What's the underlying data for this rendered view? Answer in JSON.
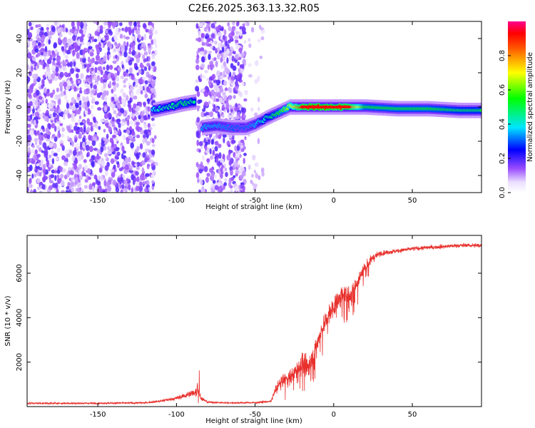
{
  "title": "C2E6.2025.363.13.32.R05",
  "chart_data": [
    {
      "type": "heatmap",
      "name": "spectrogram",
      "xlabel": "Height of straight line (km)",
      "ylabel": "Frequency (Hz)",
      "xlim": [
        -195,
        94
      ],
      "ylim": [
        -50,
        50
      ],
      "xticks": [
        -150,
        -100,
        -50,
        0,
        50
      ],
      "yticks": [
        -40,
        -20,
        0,
        20,
        40
      ],
      "colorbar": {
        "label": "Normalized spectral amplitude",
        "range": [
          0,
          1
        ],
        "ticks": [
          0.0,
          0.2,
          0.4,
          0.6,
          0.8
        ],
        "tick_labels": [
          "0.0",
          "0.2",
          "0.4",
          "0.6",
          "0.8"
        ]
      },
      "noise_regions": [
        [
          -195,
          -113
        ],
        [
          -87,
          -56
        ],
        [
          -56,
          -45
        ]
      ],
      "gap_region": [
        -113,
        -87
      ],
      "ridge": {
        "height_km": [
          -115,
          -105,
          -95,
          -88,
          -84,
          -75,
          -65,
          -56,
          -50,
          -42,
          -35,
          -28,
          -20,
          -10,
          0,
          10,
          20,
          40,
          60,
          80,
          94
        ],
        "frequency_hz": [
          -2,
          0,
          2,
          3,
          -12,
          -11,
          -12,
          -12,
          -10,
          -6,
          -3,
          0,
          0,
          0,
          0,
          0,
          0,
          -1,
          -1,
          -2,
          -2
        ],
        "amplitude": [
          0.4,
          0.45,
          0.5,
          0.45,
          0.35,
          0.35,
          0.3,
          0.3,
          0.35,
          0.45,
          0.55,
          0.65,
          0.9,
          0.95,
          0.9,
          0.9,
          0.55,
          0.55,
          0.55,
          0.5,
          0.5
        ]
      }
    },
    {
      "type": "line",
      "name": "snr",
      "xlabel": "Height of straight line (km)",
      "ylabel": "SNR (10 * v/v)",
      "xlim": [
        -195,
        94
      ],
      "ylim": [
        0,
        7700
      ],
      "xticks": [
        -150,
        -100,
        -50,
        0,
        50
      ],
      "yticks": [
        2000,
        4000,
        6000
      ],
      "color": "#e8302c",
      "series": {
        "height_km": [
          -195,
          -150,
          -120,
          -110,
          -100,
          -92,
          -88,
          -86,
          -84,
          -80,
          -70,
          -60,
          -50,
          -40,
          -36,
          -32,
          -28,
          -24,
          -20,
          -16,
          -12,
          -8,
          -4,
          0,
          5,
          10,
          15,
          20,
          25,
          30,
          40,
          50,
          60,
          70,
          80,
          94
        ],
        "snr": [
          150,
          150,
          170,
          250,
          380,
          550,
          650,
          700,
          350,
          200,
          170,
          170,
          180,
          230,
          900,
          1200,
          1300,
          1600,
          2000,
          1800,
          2500,
          3400,
          4000,
          4500,
          5000,
          5000,
          5600,
          6300,
          6700,
          6900,
          7000,
          7100,
          7150,
          7200,
          7250,
          7250
        ],
        "noise_amplitude": [
          60,
          60,
          60,
          80,
          120,
          220,
          300,
          350,
          140,
          60,
          60,
          60,
          60,
          80,
          350,
          450,
          500,
          600,
          700,
          650,
          650,
          700,
          700,
          700,
          700,
          700,
          600,
          400,
          250,
          180,
          150,
          140,
          140,
          140,
          140,
          140
        ]
      }
    }
  ]
}
